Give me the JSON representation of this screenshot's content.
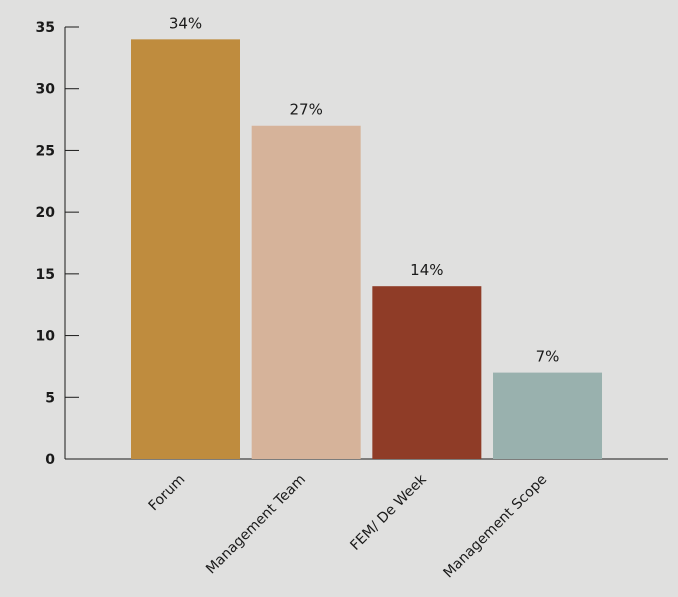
{
  "chart_data": {
    "type": "bar",
    "categories": [
      "Forum",
      "Management Team",
      "FEM/ De Week",
      "Management Scope"
    ],
    "values": [
      34,
      27,
      14,
      7
    ],
    "data_labels": [
      "34%",
      "27%",
      "14%",
      "7%"
    ],
    "colors": [
      "#bf8c3e",
      "#d6b39a",
      "#8f3c27",
      "#99b1ae"
    ],
    "ylim": [
      0,
      35
    ],
    "yticks": [
      0,
      5,
      10,
      15,
      20,
      25,
      30,
      35
    ],
    "title": "",
    "xlabel": "",
    "ylabel": "",
    "grid": false,
    "background": "#e0e0df"
  }
}
